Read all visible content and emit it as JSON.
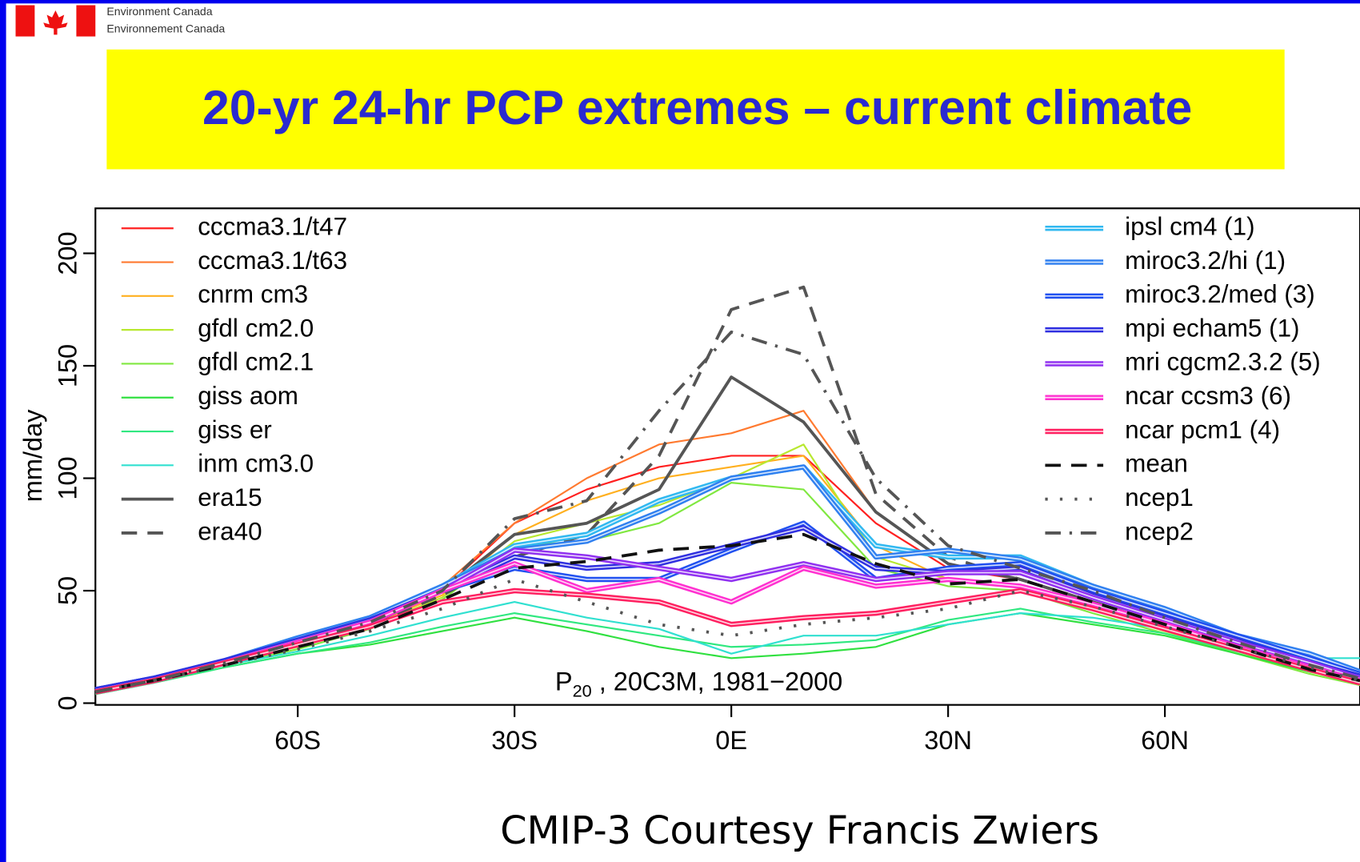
{
  "header": {
    "agency_en": "Environment Canada",
    "agency_fr": "Environnement Canada",
    "title": "20-yr 24-hr PCP extremes – current climate"
  },
  "footer": "CMIP-3 Courtesy Francis Zwiers",
  "chart_data": {
    "type": "line",
    "ylabel": "mm/day",
    "annotation": {
      "main": "P",
      "sub": "20",
      "rest": " , 20C3M, 1981−2000"
    },
    "xlim": [
      -88,
      87
    ],
    "ylim": [
      0,
      220
    ],
    "xticks": [
      {
        "value": -60,
        "label": "60S"
      },
      {
        "value": -30,
        "label": "30S"
      },
      {
        "value": 0,
        "label": "0E"
      },
      {
        "value": 30,
        "label": "30N"
      },
      {
        "value": 60,
        "label": "60N"
      }
    ],
    "yticks": [
      0,
      50,
      100,
      150,
      200
    ],
    "legend": "top",
    "x": [
      -88,
      -80,
      -70,
      -60,
      -50,
      -40,
      -30,
      -20,
      -10,
      0,
      10,
      20,
      30,
      40,
      50,
      60,
      70,
      80,
      87
    ],
    "series": [
      {
        "name": "cccma3.1/t47",
        "color": "#ff2020",
        "style": "solid",
        "values": [
          5,
          10,
          18,
          27,
          36,
          50,
          80,
          95,
          105,
          110,
          110,
          80,
          60,
          55,
          45,
          33,
          24,
          15,
          9
        ]
      },
      {
        "name": "cccma3.1/t63",
        "color": "#ff7a30",
        "style": "solid",
        "values": [
          5,
          11,
          19,
          29,
          38,
          52,
          80,
          100,
          115,
          120,
          130,
          85,
          62,
          55,
          45,
          34,
          24,
          16,
          10
        ]
      },
      {
        "name": "cnrm cm3",
        "color": "#ffb020",
        "style": "solid",
        "values": [
          5,
          10,
          18,
          26,
          35,
          48,
          75,
          90,
          100,
          105,
          110,
          70,
          55,
          52,
          43,
          33,
          23,
          14,
          9
        ]
      },
      {
        "name": "gfdl cm2.0",
        "color": "#b8e830",
        "style": "solid",
        "values": [
          5,
          10,
          18,
          25,
          34,
          47,
          72,
          80,
          88,
          100,
          115,
          65,
          55,
          52,
          42,
          32,
          22,
          14,
          9
        ]
      },
      {
        "name": "gfdl cm2.1",
        "color": "#80e840",
        "style": "solid",
        "values": [
          5,
          10,
          17,
          24,
          33,
          46,
          70,
          72,
          80,
          98,
          95,
          60,
          52,
          50,
          40,
          31,
          22,
          13,
          8
        ]
      },
      {
        "name": "giss aom",
        "color": "#30e040",
        "style": "solid",
        "values": [
          4,
          9,
          16,
          22,
          26,
          32,
          38,
          32,
          25,
          20,
          22,
          25,
          35,
          40,
          35,
          30,
          22,
          14,
          10
        ]
      },
      {
        "name": "giss er",
        "color": "#30e880",
        "style": "solid",
        "values": [
          4,
          9,
          16,
          22,
          27,
          34,
          40,
          35,
          30,
          25,
          26,
          28,
          37,
          42,
          36,
          31,
          23,
          15,
          11
        ]
      },
      {
        "name": "inm cm3.0",
        "color": "#30e0d0",
        "style": "solid",
        "values": [
          5,
          10,
          17,
          23,
          30,
          38,
          45,
          38,
          33,
          22,
          30,
          30,
          35,
          40,
          38,
          33,
          28,
          20,
          20
        ]
      },
      {
        "name": "era15",
        "color": "#555555",
        "style": "solid",
        "values": [
          5,
          10,
          18,
          26,
          35,
          50,
          75,
          80,
          95,
          145,
          125,
          85,
          62,
          55,
          45,
          35,
          25,
          16,
          10
        ]
      },
      {
        "name": "era40",
        "color": "#555555",
        "style": "dashed",
        "values": [
          5,
          10,
          18,
          27,
          35,
          48,
          65,
          75,
          110,
          175,
          185,
          93,
          65,
          55,
          45,
          35,
          25,
          15,
          10
        ]
      },
      {
        "name": "ipsl cm4 (1)",
        "color": "#30b8f0",
        "style": "double",
        "values": [
          6,
          11,
          19,
          29,
          38,
          52,
          70,
          75,
          90,
          100,
          105,
          70,
          65,
          65,
          52,
          40,
          30,
          20,
          12
        ]
      },
      {
        "name": "miroc3.2/hi (1)",
        "color": "#3080f0",
        "style": "double",
        "values": [
          6,
          11,
          19,
          29,
          38,
          52,
          68,
          72,
          85,
          100,
          105,
          65,
          68,
          64,
          52,
          42,
          30,
          22,
          14
        ]
      },
      {
        "name": "miroc3.2/med (3)",
        "color": "#2050f0",
        "style": "double",
        "values": [
          6,
          11,
          19,
          28,
          37,
          50,
          60,
          55,
          55,
          68,
          80,
          55,
          60,
          62,
          50,
          40,
          30,
          20,
          13
        ]
      },
      {
        "name": "mpi echam5 (1)",
        "color": "#3030e0",
        "style": "double",
        "values": [
          6,
          11,
          19,
          28,
          37,
          50,
          65,
          60,
          62,
          70,
          78,
          60,
          58,
          60,
          48,
          38,
          28,
          18,
          12
        ]
      },
      {
        "name": "mri cgcm2.3.2 (5)",
        "color": "#9030f0",
        "style": "double",
        "values": [
          5,
          10,
          18,
          27,
          36,
          50,
          68,
          65,
          60,
          55,
          62,
          55,
          58,
          58,
          47,
          37,
          27,
          18,
          11
        ]
      },
      {
        "name": "ncar ccsm3 (6)",
        "color": "#ff30d0",
        "style": "double",
        "values": [
          5,
          10,
          18,
          27,
          36,
          50,
          62,
          50,
          55,
          45,
          60,
          52,
          55,
          52,
          44,
          35,
          25,
          16,
          10
        ]
      },
      {
        "name": "ncar pcm1 (4)",
        "color": "#ff2060",
        "style": "double",
        "values": [
          5,
          10,
          18,
          26,
          34,
          45,
          50,
          48,
          45,
          35,
          38,
          40,
          45,
          50,
          42,
          33,
          24,
          15,
          9
        ]
      },
      {
        "name": "mean",
        "color": "#111111",
        "style": "dashed",
        "values": [
          5,
          10,
          17,
          25,
          33,
          46,
          60,
          63,
          68,
          70,
          75,
          62,
          53,
          55,
          45,
          35,
          25,
          15,
          10
        ]
      },
      {
        "name": "ncep1",
        "color": "#555555",
        "style": "dotted",
        "values": [
          5,
          10,
          17,
          24,
          32,
          42,
          55,
          45,
          35,
          30,
          35,
          38,
          42,
          50,
          43,
          34,
          25,
          16,
          10
        ]
      },
      {
        "name": "ncep2",
        "color": "#555555",
        "style": "dashdot",
        "values": [
          5,
          10,
          18,
          27,
          36,
          50,
          82,
          90,
          130,
          165,
          155,
          100,
          70,
          60,
          50,
          38,
          27,
          17,
          11
        ]
      }
    ]
  }
}
